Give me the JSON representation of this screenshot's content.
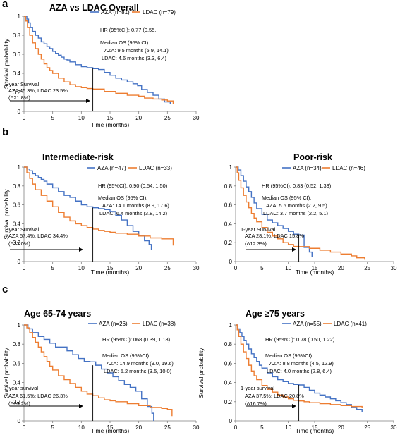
{
  "panel_letters": [
    "a",
    "b",
    "c"
  ],
  "colors": {
    "aza": "#4472c4",
    "ldac": "#ed7d31",
    "axis": "#7f7f7f",
    "marker": "#000000"
  },
  "chart_data": [
    {
      "type": "line",
      "panel": "a",
      "title": "AZA vs LDAC Overall",
      "xlabel": "Time (months)",
      "ylabel": "Survival probability",
      "xlim": [
        0,
        30
      ],
      "ylim": [
        0,
        1
      ],
      "xticks": [
        "0",
        "5",
        "10",
        "15",
        "20",
        "25",
        "30"
      ],
      "yticks": [
        "0",
        "0.2",
        "0.4",
        "0.6",
        "0.8",
        "1"
      ],
      "grid": false,
      "legend_position": "top-right",
      "series": [
        {
          "name": "AZA (n=81)",
          "color": "#4472c4",
          "x": [
            0,
            0.5,
            0.8,
            1.1,
            1.5,
            2,
            2.5,
            3,
            3.5,
            4,
            4.5,
            5,
            5.5,
            6,
            6.5,
            7,
            7.5,
            8,
            9,
            10,
            11,
            12,
            13,
            14,
            15,
            16,
            17,
            18,
            19,
            19.8,
            20.5,
            21.5,
            22.5,
            23.5,
            24.5,
            25.5
          ],
          "y": [
            1,
            0.97,
            0.93,
            0.88,
            0.84,
            0.8,
            0.77,
            0.73,
            0.71,
            0.68,
            0.66,
            0.63,
            0.61,
            0.59,
            0.57,
            0.55,
            0.54,
            0.52,
            0.49,
            0.47,
            0.46,
            0.45,
            0.44,
            0.41,
            0.38,
            0.35,
            0.33,
            0.31,
            0.29,
            0.27,
            0.23,
            0.2,
            0.17,
            0.13,
            0.1,
            0.08
          ]
        },
        {
          "name": "LDAC (n=79)",
          "color": "#ed7d31",
          "x": [
            0,
            0.3,
            0.6,
            1,
            1.5,
            2,
            2.5,
            3,
            3.5,
            4,
            4.5,
            5,
            6,
            7,
            8,
            9,
            10,
            11,
            12,
            14,
            16,
            18,
            20,
            21,
            22.5,
            24,
            25,
            26
          ],
          "y": [
            1,
            0.95,
            0.88,
            0.8,
            0.72,
            0.66,
            0.6,
            0.55,
            0.5,
            0.46,
            0.43,
            0.4,
            0.35,
            0.31,
            0.28,
            0.26,
            0.25,
            0.24,
            0.235,
            0.21,
            0.19,
            0.17,
            0.16,
            0.14,
            0.13,
            0.12,
            0.11,
            0.08
          ]
        }
      ],
      "annotations": {
        "hr": "HR (95%CI): 0.77 (0.55,",
        "median_head": "Median OS (95% CI):",
        "median_aza": "AZA: 9.5 months (5.9, 14.1)",
        "median_ldac": "LDAC: 4.6 months (3.3, 6.4)",
        "survival_head": "1-year Survival",
        "survival_line1": "AZA 45.3%; LDAC 23.5%",
        "survival_line2": "(Δ21.8%)"
      }
    },
    {
      "type": "line",
      "panel": "b",
      "title": "Intermediate-risk",
      "xlabel": "Time (months)",
      "ylabel": "Survival probability",
      "xlim": [
        0,
        30
      ],
      "ylim": [
        0,
        1
      ],
      "xticks": [
        "0",
        "5",
        "10",
        "15",
        "20",
        "25",
        "30"
      ],
      "yticks": [
        "0",
        "0.2",
        "0.4",
        "0.6",
        "0.8",
        "1"
      ],
      "grid": false,
      "legend_position": "top-right",
      "series": [
        {
          "name": "AZA (n=47)",
          "color": "#4472c4",
          "x": [
            0,
            0.5,
            1,
            1.5,
            2,
            2.5,
            3,
            3.5,
            4,
            5,
            6,
            7,
            8,
            9,
            10,
            11,
            12,
            13,
            14,
            15,
            16,
            17,
            18,
            19,
            20,
            21,
            21.8,
            22.2
          ],
          "y": [
            1,
            0.98,
            0.96,
            0.93,
            0.91,
            0.89,
            0.87,
            0.85,
            0.82,
            0.78,
            0.74,
            0.7,
            0.68,
            0.64,
            0.6,
            0.58,
            0.57,
            0.56,
            0.55,
            0.53,
            0.49,
            0.44,
            0.38,
            0.32,
            0.27,
            0.22,
            0.18,
            0.12
          ]
        },
        {
          "name": "LDAC (n=33)",
          "color": "#ed7d31",
          "x": [
            0,
            0.5,
            1,
            1.5,
            2,
            3,
            4,
            5,
            6,
            7,
            8,
            9,
            10,
            11,
            12,
            13,
            14,
            15,
            16,
            18,
            20,
            22,
            24,
            25.8,
            26
          ],
          "y": [
            1,
            0.94,
            0.88,
            0.82,
            0.76,
            0.7,
            0.64,
            0.58,
            0.52,
            0.47,
            0.43,
            0.4,
            0.38,
            0.36,
            0.344,
            0.33,
            0.32,
            0.31,
            0.3,
            0.29,
            0.27,
            0.25,
            0.24,
            0.24,
            0.17
          ]
        }
      ],
      "annotations": {
        "hr": "HR (95%CI): 0.90 (0.54, 1.50)",
        "median_head": "Median OS (95% CI):",
        "median_aza": "AZA: 14.1 months (8.9, 17.6)",
        "median_ldac": "LDAC: 6.4 months (3.8, 14.2)",
        "survival_head": "1-year Survival",
        "survival_line1": "AZA 57.4%; LDAC 34.4%",
        "survival_line2": "(Δ23.0%)"
      }
    },
    {
      "type": "line",
      "panel": "b",
      "title": "Poor-risk",
      "xlabel": "Time (months)",
      "ylabel": "",
      "xlim": [
        0,
        30
      ],
      "ylim": [
        0,
        1
      ],
      "xticks": [
        "0",
        "5",
        "10",
        "15",
        "20",
        "25",
        "30"
      ],
      "yticks": [
        "0",
        "0.2",
        "0.4",
        "0.6",
        "0.8",
        "1"
      ],
      "grid": false,
      "legend_position": "top-right",
      "series": [
        {
          "name": "AZA (n=34)",
          "color": "#4472c4",
          "x": [
            0,
            0.5,
            1,
            1.5,
            2,
            2.5,
            3,
            3.5,
            4,
            5,
            6,
            7,
            8,
            9,
            10,
            11,
            12,
            12.5,
            13,
            14,
            14.5
          ],
          "y": [
            1,
            0.97,
            0.91,
            0.85,
            0.79,
            0.74,
            0.68,
            0.62,
            0.56,
            0.5,
            0.44,
            0.41,
            0.38,
            0.35,
            0.32,
            0.29,
            0.28,
            0.28,
            0.15,
            0.1,
            0.05
          ]
        },
        {
          "name": "LDAC (n=46)",
          "color": "#ed7d31",
          "x": [
            0,
            0.3,
            0.6,
            1,
            1.5,
            2,
            2.5,
            3,
            3.5,
            4,
            5,
            6,
            7,
            8,
            9,
            10,
            11,
            12,
            14,
            16,
            18,
            20,
            22,
            23,
            24.5
          ],
          "y": [
            1,
            0.94,
            0.86,
            0.78,
            0.7,
            0.63,
            0.57,
            0.51,
            0.46,
            0.42,
            0.36,
            0.31,
            0.27,
            0.24,
            0.2,
            0.18,
            0.16,
            0.158,
            0.14,
            0.12,
            0.1,
            0.08,
            0.06,
            0.04,
            0.02
          ]
        }
      ],
      "annotations": {
        "hr": "HR (95%CI): 0.83 (0.52, 1.33)",
        "median_head": "Median OS (95% CI):",
        "median_aza": "AZA: 5.6 months (2.2, 9.5)",
        "median_ldac": "LDAC: 3.7 months (2.2, 5.1)",
        "survival_head": "1-year Survival",
        "survival_line1": "AZA 28.1%; LDAC 15.8%",
        "survival_line2": "(Δ12.3%)"
      }
    },
    {
      "type": "line",
      "panel": "c",
      "title": "Age 65-74 years",
      "xlabel": "Time (months)",
      "ylabel": "Survival probability",
      "xlim": [
        0,
        30
      ],
      "ylim": [
        0,
        1
      ],
      "xticks": [
        "0",
        "5",
        "10",
        "15",
        "20",
        "25",
        "30"
      ],
      "yticks": [
        "0",
        "0.2",
        "0.4",
        "0.6",
        "0.8",
        "1"
      ],
      "grid": false,
      "legend_position": "top-right",
      "series": [
        {
          "name": "AZA (n=26)",
          "color": "#4472c4",
          "x": [
            0,
            0.7,
            1.5,
            2.5,
            3.5,
            4.5,
            5.5,
            6.5,
            7.5,
            8.5,
            9.5,
            10.5,
            11.5,
            12.5,
            13.5,
            14.5,
            15.5,
            16.5,
            17.5,
            18.5,
            19.5,
            20.5,
            21.5,
            22.3,
            22.6
          ],
          "y": [
            1,
            0.96,
            0.92,
            0.88,
            0.85,
            0.81,
            0.77,
            0.77,
            0.73,
            0.69,
            0.65,
            0.62,
            0.615,
            0.58,
            0.54,
            0.5,
            0.46,
            0.42,
            0.38,
            0.35,
            0.31,
            0.23,
            0.15,
            0.08,
            0
          ]
        },
        {
          "name": "LDAC (n=38)",
          "color": "#ed7d31",
          "x": [
            0,
            0.5,
            1,
            1.5,
            2,
            2.5,
            3,
            3.5,
            4,
            4.5,
            5,
            6,
            7,
            8,
            9,
            10,
            11,
            12,
            13,
            14,
            15,
            16,
            18,
            20,
            22,
            24,
            25,
            25.8
          ],
          "y": [
            1,
            0.97,
            0.92,
            0.87,
            0.82,
            0.77,
            0.72,
            0.67,
            0.62,
            0.57,
            0.53,
            0.47,
            0.43,
            0.39,
            0.35,
            0.31,
            0.28,
            0.263,
            0.24,
            0.22,
            0.21,
            0.2,
            0.18,
            0.16,
            0.14,
            0.13,
            0.12,
            0.05
          ]
        }
      ],
      "annotations": {
        "hr": "HR (95%CI): 068 (0.39, 1.18)",
        "median_head": "Median OS (95%CI):",
        "median_aza": "AZA: 14.9 months (9.0, 19.6)",
        "median_ldac": "LDAC: 5.2 months (3.5, 10.0)",
        "survival_head": "1-year survival",
        "survival_line1": "AZA 61.5%; LDAC 26.3%",
        "survival_line2": "(Δ35.2%)"
      }
    },
    {
      "type": "line",
      "panel": "c",
      "title": "Age ≥75 years",
      "xlabel": "Time (months)",
      "ylabel": "Survival probability",
      "xlim": [
        0,
        30
      ],
      "ylim": [
        0,
        1
      ],
      "xticks": [
        "0",
        "5",
        "10",
        "15",
        "20",
        "25",
        "30"
      ],
      "yticks": [
        "0",
        "0.2",
        "0.4",
        "0.6",
        "0.8",
        "1"
      ],
      "grid": false,
      "legend_position": "top-right",
      "series": [
        {
          "name": "AZA (n=55)",
          "color": "#4472c4",
          "x": [
            0,
            0.4,
            0.8,
            1.2,
            1.6,
            2,
            2.5,
            3,
            3.5,
            4,
            4.5,
            5,
            6,
            7,
            8,
            9,
            10,
            11,
            12,
            13,
            14,
            15,
            16,
            17,
            18,
            19,
            20,
            21,
            22,
            23,
            24
          ],
          "y": [
            1,
            0.96,
            0.92,
            0.88,
            0.84,
            0.8,
            0.75,
            0.7,
            0.66,
            0.62,
            0.58,
            0.55,
            0.5,
            0.46,
            0.43,
            0.41,
            0.39,
            0.38,
            0.375,
            0.35,
            0.32,
            0.29,
            0.27,
            0.25,
            0.23,
            0.21,
            0.19,
            0.17,
            0.14,
            0.12,
            0.09
          ]
        },
        {
          "name": "LDAC (n=41)",
          "color": "#ed7d31",
          "x": [
            0,
            0.3,
            0.6,
            1,
            1.5,
            2,
            2.5,
            3,
            3.5,
            4,
            5,
            6,
            7,
            8,
            9,
            10,
            11,
            12,
            13,
            14,
            16,
            18,
            20,
            22,
            24
          ],
          "y": [
            1,
            0.95,
            0.88,
            0.8,
            0.72,
            0.65,
            0.58,
            0.52,
            0.47,
            0.43,
            0.37,
            0.33,
            0.3,
            0.27,
            0.25,
            0.23,
            0.215,
            0.208,
            0.2,
            0.19,
            0.18,
            0.17,
            0.16,
            0.15,
            0.14
          ]
        }
      ],
      "annotations": {
        "hr": "HR (95%CI): 0.78 (0.50, 1.22)",
        "median_head": "Median OS (95%CI):",
        "median_aza": "AZA: 8.8 months (4.5, 12.9)",
        "median_ldac": "LDAC: 4.0 months (2.8, 6.4)",
        "survival_head": "1-year survival",
        "survival_line1": "AZA 37.5%; LDAC 20.8%",
        "survival_line2": "(Δ16.7%)"
      }
    }
  ]
}
